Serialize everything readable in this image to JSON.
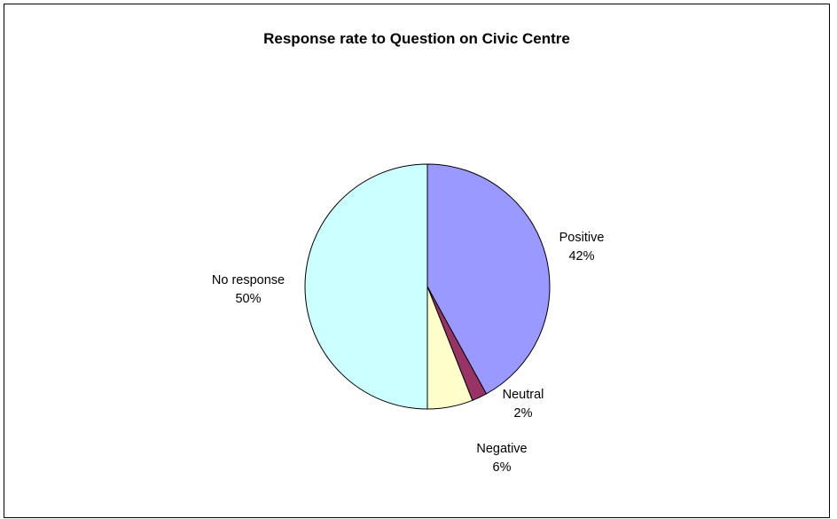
{
  "chart_data": {
    "type": "pie",
    "title": "Response rate to Question on Civic Centre",
    "slices": [
      {
        "name": "Positive",
        "value": 42,
        "label": "42%",
        "color": "#9999ff"
      },
      {
        "name": "Neutral",
        "value": 2,
        "label": "2%",
        "color": "#993366"
      },
      {
        "name": "Negative",
        "value": 6,
        "label": "6%",
        "color": "#ffffcc"
      },
      {
        "name": "No response",
        "value": 50,
        "label": "50%",
        "color": "#ccffff"
      }
    ],
    "start_angle": "12 o'clock",
    "direction": "clockwise",
    "legend": "none"
  }
}
